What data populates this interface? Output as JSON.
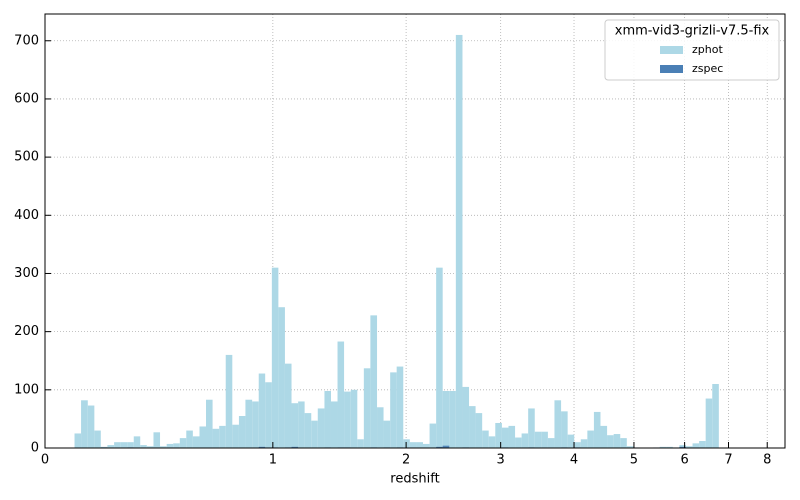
{
  "chart_data": {
    "type": "histogram",
    "xlabel": "redshift",
    "xscale": "log1p",
    "grid": true,
    "legend_title": "xmm-vid3-grizli-v7.5-fix",
    "legend_loc": "upper right",
    "bins": [
      0.094,
      0.116,
      0.139,
      0.162,
      0.185,
      0.209,
      0.234,
      0.259,
      0.284,
      0.31,
      0.336,
      0.363,
      0.391,
      0.419,
      0.448,
      0.477,
      0.507,
      0.537,
      0.568,
      0.6,
      0.632,
      0.665,
      0.699,
      0.733,
      0.768,
      0.804,
      0.84,
      0.878,
      0.916,
      0.954,
      0.994,
      1.034,
      1.075,
      1.117,
      1.16,
      1.203,
      1.248,
      1.293,
      1.34,
      1.387,
      1.435,
      1.484,
      1.535,
      1.586,
      1.638,
      1.691,
      1.746,
      1.801,
      1.858,
      1.915,
      1.974,
      2.034,
      2.096,
      2.158,
      2.222,
      2.287,
      2.353,
      2.421,
      2.49,
      2.561,
      2.633,
      2.706,
      2.781,
      2.857,
      2.935,
      3.015,
      3.096,
      3.179,
      3.263,
      3.349,
      3.437,
      3.527,
      3.618,
      3.711,
      3.807,
      3.904,
      4.003,
      4.104,
      4.207,
      4.312,
      4.419,
      4.529,
      4.641,
      4.755,
      4.871,
      4.989,
      5.11,
      5.234,
      5.36,
      5.488,
      5.619,
      5.753,
      5.89,
      6.029,
      6.171,
      6.316,
      6.463,
      6.614,
      6.768,
      6.925
    ],
    "series": [
      {
        "name": "zphot",
        "color": "#add8e6",
        "values": [
          25,
          82,
          73,
          30,
          2,
          5,
          10,
          10,
          10,
          20,
          5,
          3,
          27,
          3,
          7,
          8,
          17,
          30,
          20,
          37,
          83,
          33,
          38,
          160,
          40,
          55,
          83,
          80,
          128,
          113,
          310,
          242,
          145,
          77,
          80,
          60,
          47,
          68,
          98,
          80,
          183,
          97,
          100,
          15,
          137,
          228,
          70,
          47,
          130,
          140,
          15,
          10,
          10,
          7,
          42,
          310,
          98,
          98,
          710,
          105,
          72,
          60,
          30,
          20,
          43,
          35,
          38,
          18,
          25,
          68,
          28,
          28,
          17,
          82,
          63,
          23,
          10,
          15,
          30,
          62,
          38,
          22,
          24,
          17,
          3,
          1,
          0,
          0,
          1,
          2,
          2,
          1,
          5,
          3,
          8,
          12,
          85,
          110,
          0
        ]
      },
      {
        "name": "zspec",
        "color": "#4a7fb5",
        "values": [
          0,
          0,
          0,
          0,
          1,
          0,
          0,
          0,
          1,
          0,
          0,
          0,
          0,
          0,
          0,
          0,
          0,
          0,
          0,
          0,
          0,
          0,
          0,
          0,
          0,
          0,
          0,
          0,
          2,
          1,
          1,
          0,
          1,
          2,
          0,
          0,
          0,
          0,
          1,
          0,
          1,
          1,
          0,
          0,
          0,
          1,
          0,
          1,
          0,
          1,
          0,
          0,
          0,
          0,
          0,
          2,
          4,
          0,
          0,
          1,
          0,
          0,
          0,
          0,
          0,
          1,
          0,
          0,
          0,
          1,
          0,
          0,
          0,
          0,
          1,
          0,
          1,
          0,
          0,
          0,
          0,
          0,
          0,
          0,
          0,
          0,
          0,
          0,
          0,
          0,
          0,
          0,
          2,
          0,
          0,
          0,
          0,
          0,
          0
        ]
      }
    ],
    "xlim": [
      0,
      8.5
    ],
    "xticks": [
      0,
      1,
      2,
      3,
      4,
      5,
      6,
      7,
      8
    ],
    "ylim": [
      0,
      746
    ],
    "yticks": [
      0,
      100,
      200,
      300,
      400,
      500,
      600,
      700
    ]
  }
}
